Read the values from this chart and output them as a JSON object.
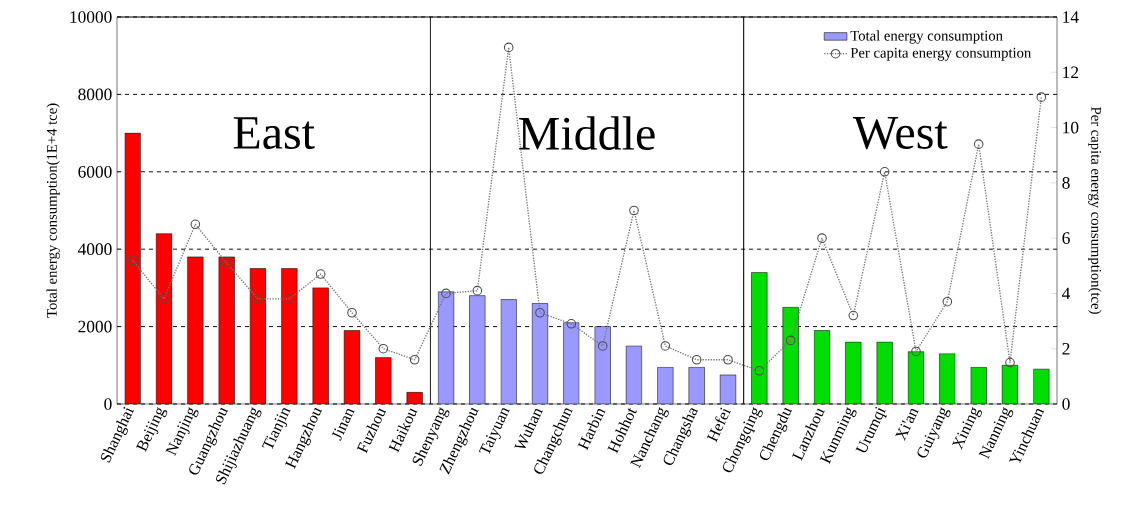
{
  "chart_data": {
    "type": "bar",
    "categories": [
      "Shanghai",
      "Beijing",
      "Nanjing",
      "Guangzhou",
      "Shijiazhuang",
      "Tianjin",
      "Hangzhou",
      "Jinan",
      "Fuzhou",
      "Haikou",
      "Shenyang",
      "Zhengzhou",
      "Taiyuan",
      "Wuhan",
      "Changchun",
      "Harbin",
      "Hohhot",
      "Nanchang",
      "Changsha",
      "Hefei",
      "Chongqing",
      "Chengdu",
      "Lanzhou",
      "Kunming",
      "Urumqi",
      "Xi'an",
      "Guiyang",
      "Xining",
      "Nanning",
      "Yinchuan"
    ],
    "series": [
      {
        "name": "Total energy consumption",
        "color": "#9999ff",
        "colors": [
          "#ff0000",
          "#ff0000",
          "#ff0000",
          "#ff0000",
          "#ff0000",
          "#ff0000",
          "#ff0000",
          "#ff0000",
          "#ff0000",
          "#ff0000",
          "#9999ff",
          "#9999ff",
          "#9999ff",
          "#9999ff",
          "#9999ff",
          "#9999ff",
          "#9999ff",
          "#9999ff",
          "#9999ff",
          "#9999ff",
          "#00dd00",
          "#00dd00",
          "#00dd00",
          "#00dd00",
          "#00dd00",
          "#00dd00",
          "#00dd00",
          "#00dd00",
          "#00dd00",
          "#00dd00"
        ],
        "values": [
          7000,
          4400,
          3800,
          3800,
          3500,
          3500,
          3000,
          1900,
          1200,
          300,
          2900,
          2800,
          2700,
          2600,
          2100,
          2000,
          1500,
          950,
          950,
          750,
          3400,
          2500,
          1900,
          1600,
          1600,
          1350,
          1300,
          950,
          1000,
          900
        ]
      },
      {
        "name": "Per capita energy consumption",
        "type": "line",
        "axis": "y2",
        "color": "#777777",
        "marker": "circle",
        "line_style": "dotted",
        "values": [
          5.2,
          3.8,
          6.5,
          5.1,
          3.8,
          3.8,
          4.7,
          3.3,
          2.0,
          1.6,
          4.0,
          4.1,
          12.9,
          3.3,
          2.9,
          2.1,
          7.0,
          2.1,
          1.6,
          1.6,
          1.2,
          2.3,
          6.0,
          3.2,
          8.4,
          1.9,
          3.7,
          9.4,
          1.5,
          11.1
        ]
      }
    ],
    "ylabel": "Total energy consumption(1E+4 tce)",
    "y2label": "Per capita energy consumption(tce)",
    "ylim": [
      0,
      10000
    ],
    "yticks": [
      0,
      2000,
      4000,
      6000,
      8000,
      10000
    ],
    "y2lim": [
      0,
      14
    ],
    "y2ticks": [
      0,
      2,
      4,
      6,
      8,
      10,
      12,
      14
    ],
    "annotations": [
      "East",
      "Middle",
      "West"
    ],
    "grid": "y",
    "legend": "top right"
  }
}
